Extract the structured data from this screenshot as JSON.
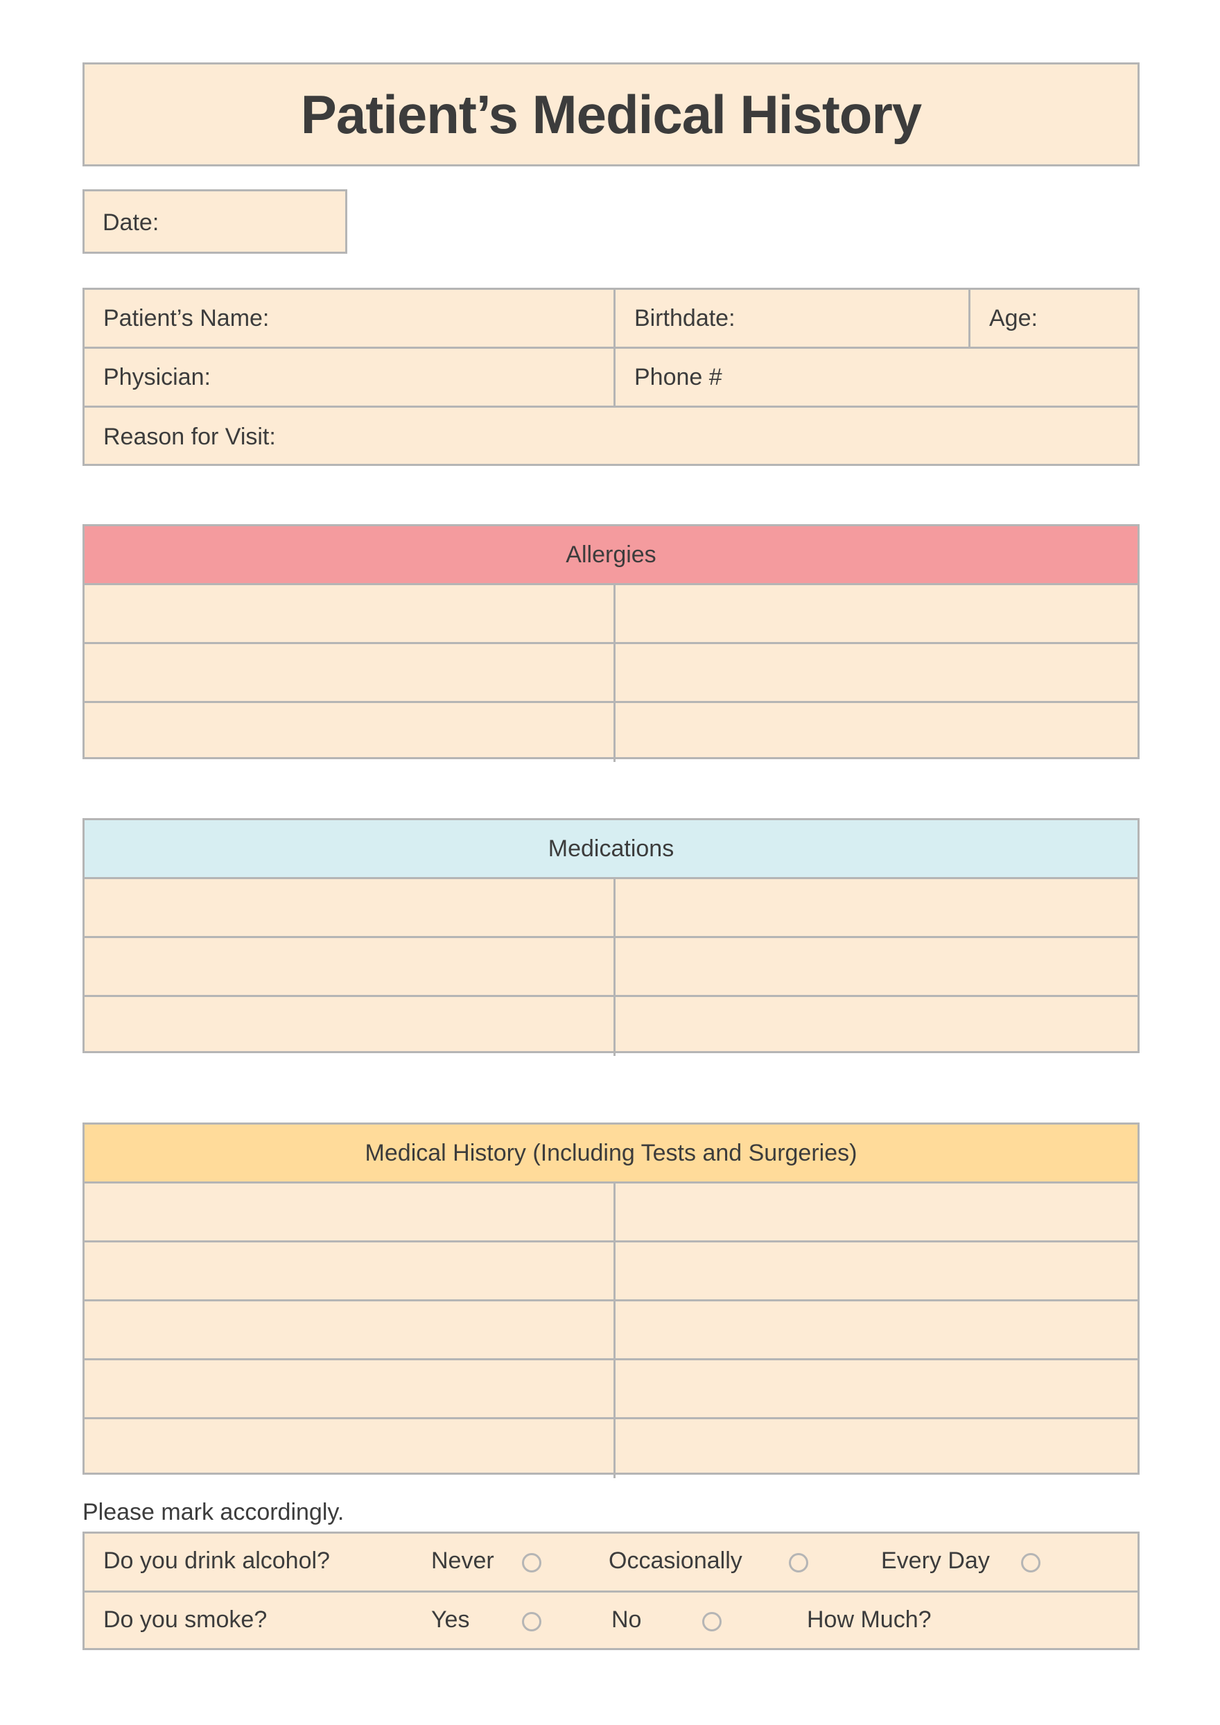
{
  "title": "Patient’s Medical History",
  "date_label": "Date:",
  "patient_info": {
    "name": "Patient’s Name:",
    "birthdate": "Birthdate:",
    "age": "Age:",
    "physician": "Physician:",
    "phone": "Phone #",
    "reason": "Reason for Visit:"
  },
  "sections": {
    "allergies": {
      "title": "Allergies",
      "color": "#F49B9E"
    },
    "medications": {
      "title": "Medications",
      "color": "#D7EEF2"
    },
    "history": {
      "title": "Medical History (Including Tests and Surgeries)",
      "color": "#FFDB9A"
    }
  },
  "checklist": {
    "instruction": "Please mark accordingly.",
    "alcohol": {
      "question": "Do you drink alcohol?",
      "options": [
        "Never",
        "Occasionally",
        "Every Day"
      ]
    },
    "smoke": {
      "question": "Do you smoke?",
      "options": [
        "Yes",
        "No"
      ],
      "amount_label": "How Much?"
    }
  },
  "colors": {
    "field_bg": "#FDEBD5",
    "border": "#B5B5B5",
    "text": "#3C3C3C"
  }
}
